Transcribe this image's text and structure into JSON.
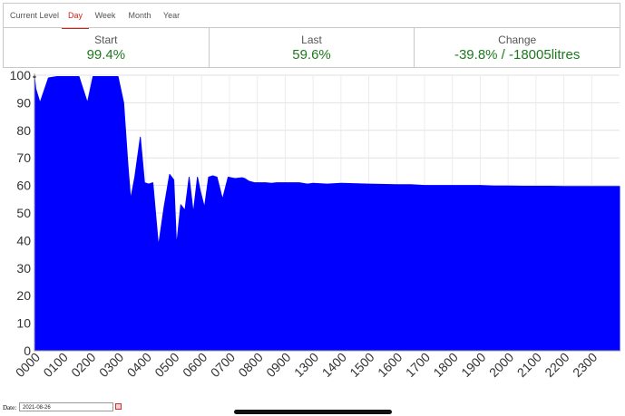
{
  "tabs": [
    {
      "label": "Current Level",
      "active": false
    },
    {
      "label": "Day",
      "active": true
    },
    {
      "label": "Week",
      "active": false
    },
    {
      "label": "Month",
      "active": false
    },
    {
      "label": "Year",
      "active": false
    }
  ],
  "stats": {
    "start": {
      "label": "Start",
      "value": "99.4%"
    },
    "last": {
      "label": "Last",
      "value": "59.6%"
    },
    "change": {
      "label": "Change",
      "value": "-39.8% / -18005litres"
    }
  },
  "colors": {
    "accent": "#d0231a",
    "value_green": "#1e7a1e",
    "area_fill": "#0000ff"
  },
  "date": {
    "label": "Date:",
    "value": "2021-08-26"
  },
  "chart_data": {
    "type": "area",
    "title": "",
    "xlabel": "",
    "ylabel": "",
    "ylim": [
      0,
      100
    ],
    "yticks": [
      0,
      10,
      20,
      30,
      40,
      50,
      60,
      70,
      80,
      90,
      100
    ],
    "xtick_labels": [
      "0000",
      "0100",
      "0200",
      "0300",
      "0400",
      "0500",
      "0600",
      "0700",
      "0800",
      "0900",
      "1300",
      "1400",
      "1500",
      "1600",
      "1700",
      "1800",
      "1900",
      "2000",
      "2100",
      "2200",
      "2300"
    ],
    "grid": true,
    "legend": "none",
    "series": [
      {
        "x": [
          0,
          0.05,
          0.2,
          0.5,
          0.8,
          1.2,
          1.6,
          1.9,
          2.1,
          2.2,
          2.6,
          3.0,
          3.2,
          3.35,
          3.45,
          3.6,
          3.8,
          3.95,
          4.1,
          4.25,
          4.45,
          4.65,
          4.85,
          5.0,
          5.1,
          5.25,
          5.4,
          5.55,
          5.7,
          5.85,
          5.95,
          6.1,
          6.25,
          6.4,
          6.55,
          6.75,
          6.95,
          7.2,
          7.45,
          7.55,
          7.7,
          7.9,
          8.1,
          8.3,
          8.5,
          8.7,
          8.9,
          9.2,
          9.5,
          9.8,
          10.0,
          10.5,
          11,
          12,
          13,
          13.5,
          14,
          15,
          15.5,
          16,
          16.5,
          17,
          17.5,
          18,
          18.5,
          19,
          19.5,
          20,
          20.5,
          21
        ],
        "y": [
          99.4,
          95,
          90,
          99,
          99.5,
          99.5,
          99.5,
          90,
          99.5,
          99.5,
          99.5,
          99.5,
          90,
          68,
          55,
          63,
          77.5,
          61,
          60.5,
          61,
          38,
          52,
          64,
          62,
          38,
          53,
          51,
          63,
          50,
          63,
          58,
          52,
          63,
          63.5,
          63,
          55,
          63,
          62.5,
          62.8,
          62.5,
          61.5,
          61,
          61,
          61,
          60.8,
          61,
          61,
          61,
          61,
          60.5,
          60.8,
          60.5,
          60.8,
          60.5,
          60.3,
          60.3,
          60,
          60,
          60,
          60,
          59.8,
          59.8,
          59.7,
          59.7,
          59.7,
          59.6,
          59.6,
          59.6,
          59.6,
          59.6
        ]
      }
    ]
  }
}
